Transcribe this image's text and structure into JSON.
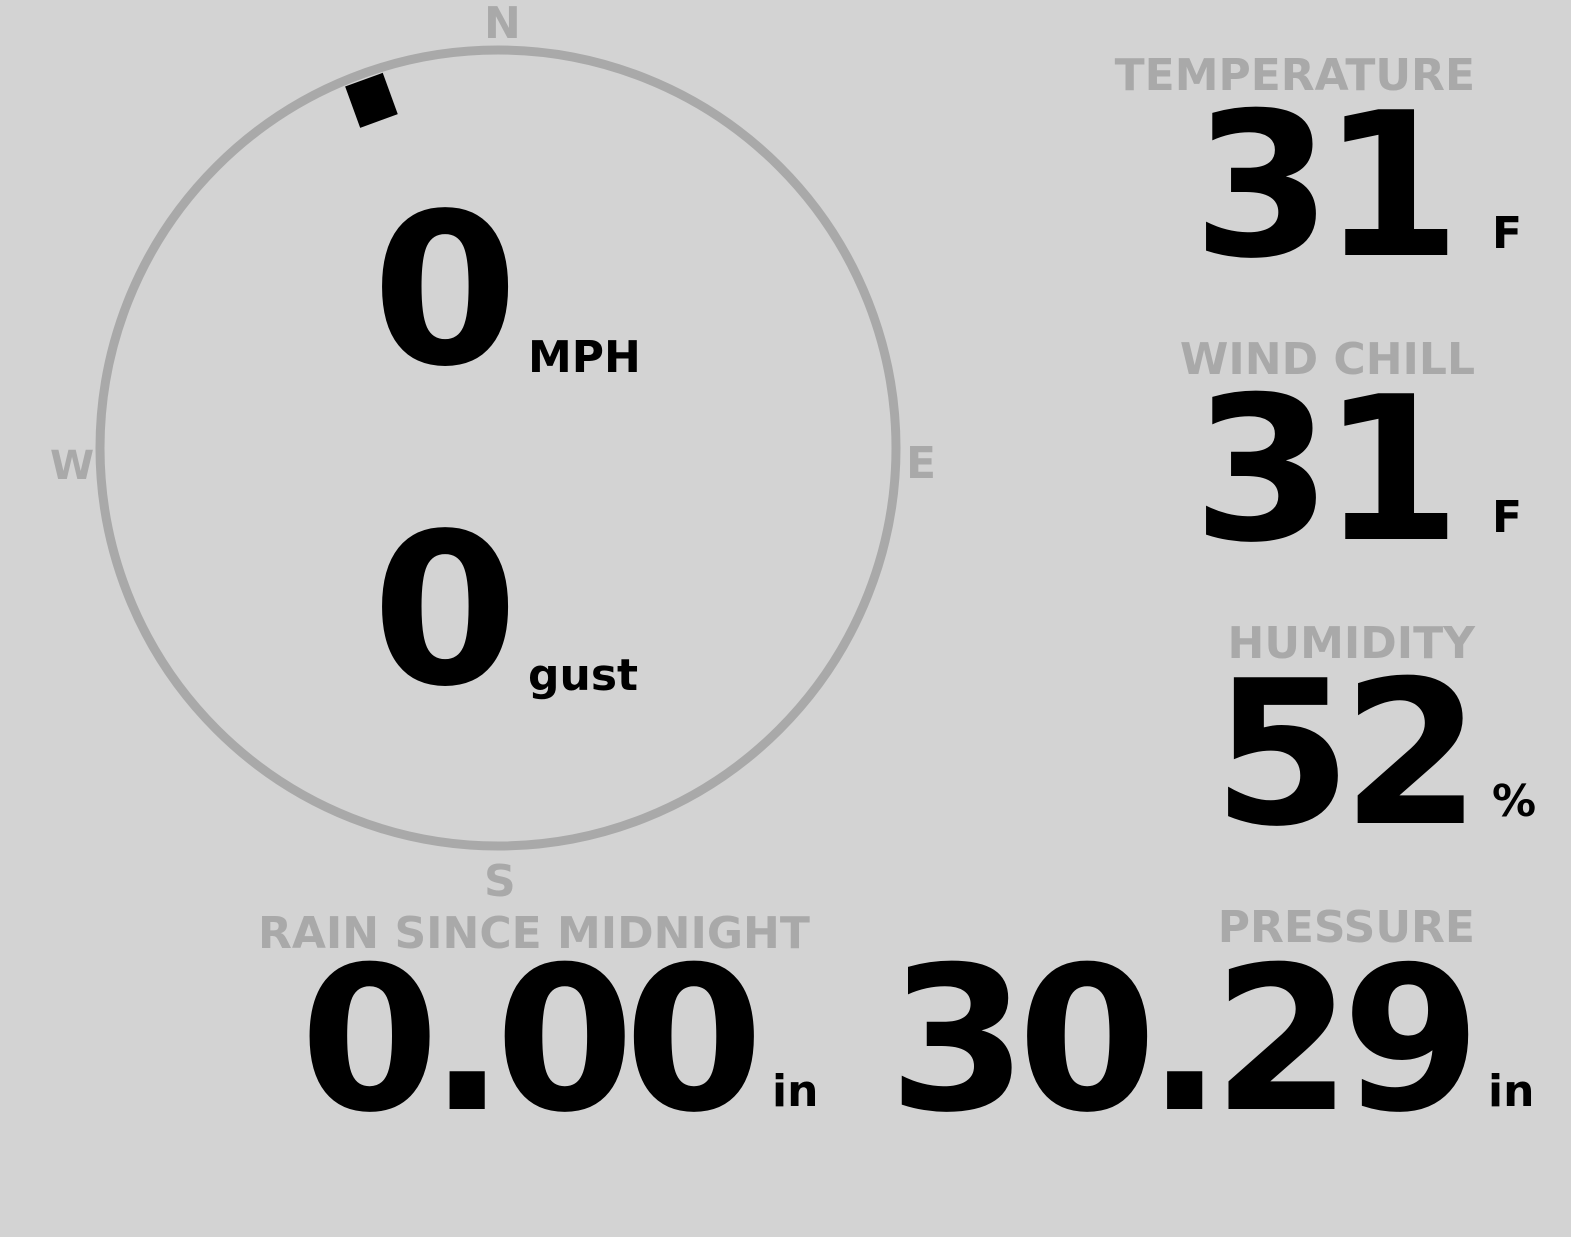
{
  "compass": {
    "north": "N",
    "south": "S",
    "east": "E",
    "west": "W",
    "wind_direction_deg": 340,
    "ring_color": "#a9a9a9",
    "marker_color": "#000000"
  },
  "wind": {
    "speed": "0",
    "speed_unit": "MPH",
    "gust": "0",
    "gust_label": "gust"
  },
  "temperature": {
    "label": "TEMPERATURE",
    "value": "31",
    "unit": "F"
  },
  "wind_chill": {
    "label": "WIND CHILL",
    "value": "31",
    "unit": "F"
  },
  "humidity": {
    "label": "HUMIDITY",
    "value": "52",
    "unit": "%"
  },
  "rain": {
    "label": "RAIN SINCE MIDNIGHT",
    "value": "0.00",
    "unit": "in"
  },
  "pressure": {
    "label": "PRESSURE",
    "value": "30.29",
    "unit": "in"
  }
}
